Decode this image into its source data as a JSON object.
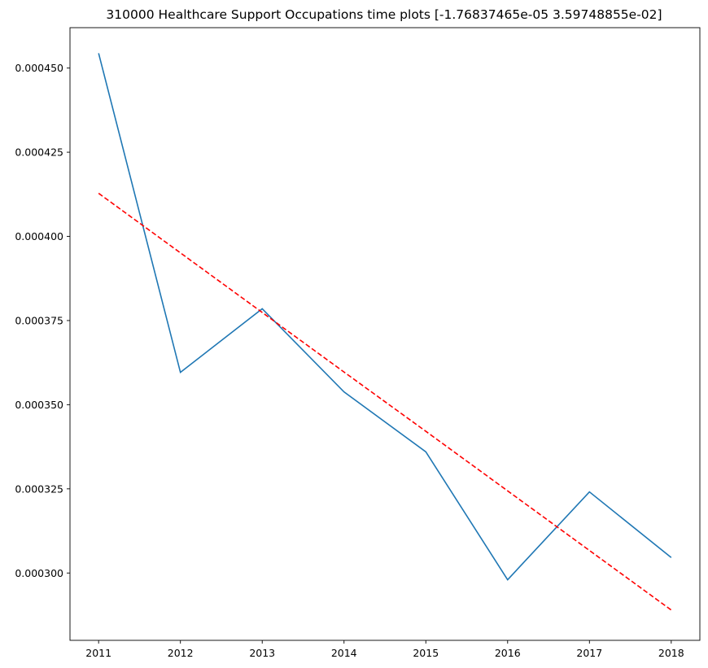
{
  "chart_data": {
    "type": "line",
    "title": "310000 Healthcare Support Occupations time plots [-1.76837465e-05  3.59748855e-02]",
    "xlabel": "",
    "ylabel": "",
    "x": [
      2011,
      2012,
      2013,
      2014,
      2015,
      2016,
      2017,
      2018
    ],
    "x_tick_labels": [
      "2011",
      "2012",
      "2013",
      "2014",
      "2015",
      "2016",
      "2017",
      "2018"
    ],
    "y_ticks": [
      0.0003,
      0.000325,
      0.00035,
      0.000375,
      0.0004,
      0.000425,
      0.00045
    ],
    "y_tick_labels": [
      "0.000300",
      "0.000325",
      "0.000350",
      "0.000375",
      "0.000400",
      "0.000425",
      "0.000450"
    ],
    "xlim": [
      2010.65,
      2018.35
    ],
    "ylim": [
      0.00028,
      0.000462
    ],
    "grid": false,
    "series": [
      {
        "values": [
          0.0004544,
          0.0003596,
          0.0003785,
          0.0003538,
          0.000336,
          0.000298,
          0.0003241,
          0.0003046
        ],
        "color": "#1f77b4",
        "style": "solid"
      },
      {
        "values": [
          0.0004128,
          0.0003951,
          0.0003774,
          0.0003597,
          0.0003421,
          0.0003244,
          0.0003067,
          0.000289
        ],
        "color": "#ff0000",
        "style": "dashed"
      }
    ]
  }
}
